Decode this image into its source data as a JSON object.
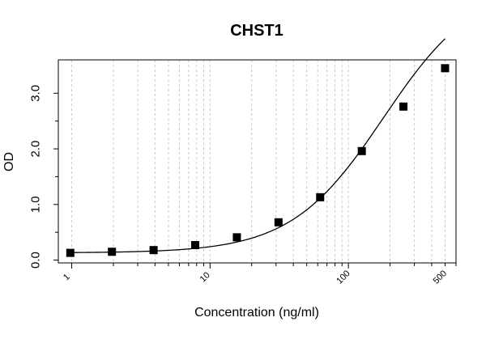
{
  "chart_data": {
    "type": "scatter",
    "title": "CHST1",
    "xlabel": "Concentration (ng/ml)",
    "ylabel": "OD",
    "x_scale": "log",
    "xlim": [
      0.8,
      600
    ],
    "ylim": [
      -0.05,
      3.6
    ],
    "grid": true,
    "legend": "none",
    "x_ticks": [
      {
        "value": 1,
        "label": "1"
      },
      {
        "value": 10,
        "label": "10"
      },
      {
        "value": 100,
        "label": "100"
      },
      {
        "value": 500,
        "label": "500"
      }
    ],
    "y_ticks": [
      {
        "value": 0,
        "label": "0.0"
      },
      {
        "value": 1,
        "label": "1.0"
      },
      {
        "value": 2,
        "label": "2.0"
      },
      {
        "value": 3,
        "label": "3.0"
      }
    ],
    "series": [
      {
        "x": [
          0.9766,
          1.953,
          3.906,
          7.8125,
          15.625,
          31.25,
          62.5,
          125,
          250,
          500
        ],
        "y": [
          0.13,
          0.15,
          0.18,
          0.27,
          0.41,
          0.68,
          1.13,
          1.96,
          2.76,
          3.45
        ]
      }
    ],
    "curve": {
      "type": "4pl",
      "A": 0.13,
      "D": 5.0,
      "C": 180,
      "B": 1.3
    },
    "colors": {
      "marker": "#000000",
      "line": "#000000",
      "grid": "#c8c8c8"
    }
  }
}
